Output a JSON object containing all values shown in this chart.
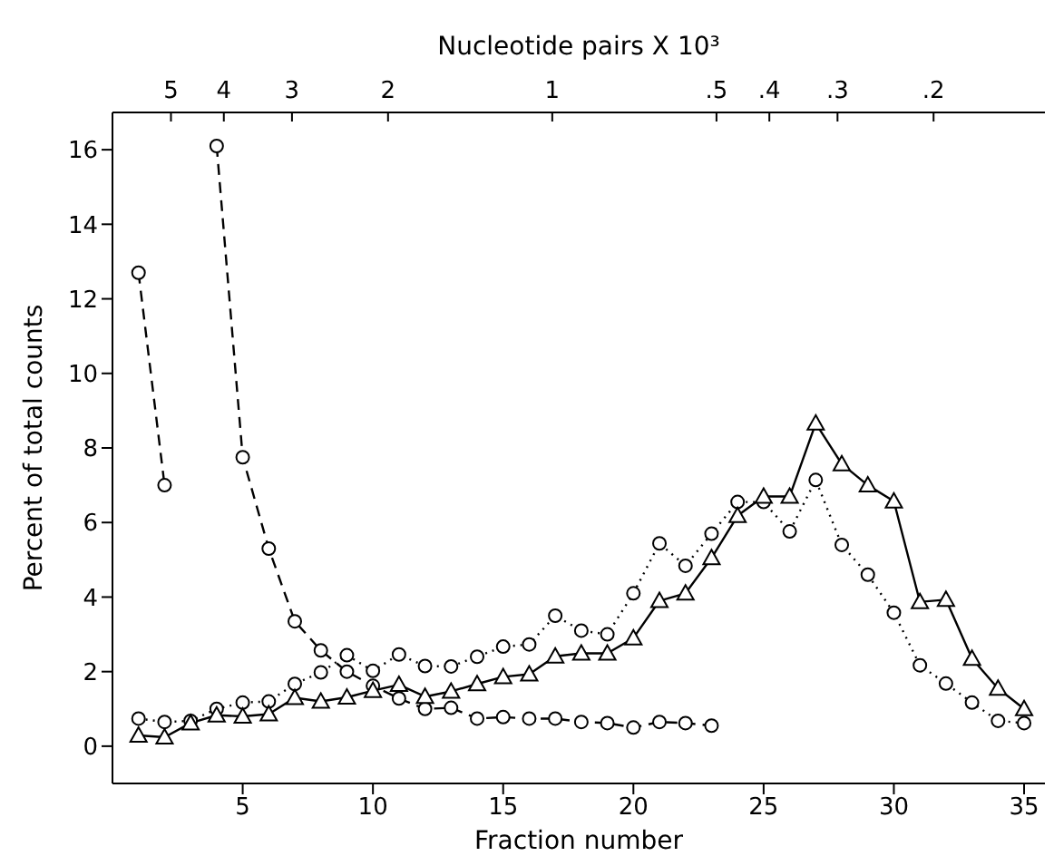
{
  "chart_data": {
    "type": "line",
    "xlabel": "Fraction number",
    "ylabel": "Percent of total counts",
    "x2label": "Nucleotide pairs X 10³",
    "x": [
      1,
      2,
      3,
      4,
      5,
      6,
      7,
      8,
      9,
      10,
      11,
      12,
      13,
      14,
      15,
      16,
      17,
      18,
      19,
      20,
      21,
      22,
      23,
      24,
      25,
      26,
      27,
      28,
      29,
      30,
      31,
      32,
      33,
      34,
      35
    ],
    "xlim": [
      0,
      35.8
    ],
    "xticks": [
      5,
      10,
      15,
      20,
      25,
      30,
      35
    ],
    "ylim": [
      -1,
      17
    ],
    "yticks": [
      0,
      2,
      4,
      6,
      8,
      10,
      12,
      14,
      16
    ],
    "log": "x2",
    "x2lim": [
      6.4,
      0.125
    ],
    "x2ticks": [
      5,
      4,
      3,
      2,
      1,
      {
        "value": 0.5,
        "label": ".5"
      },
      {
        "value": 0.4,
        "label": ".4"
      },
      {
        "value": 0.3,
        "label": ".3"
      },
      {
        "value": 0.2,
        "label": ".2"
      }
    ],
    "grid": false,
    "series": [
      {
        "color": "#000000",
        "marker": "circle",
        "line_style": "dashed",
        "x": [
          1,
          2,
          3,
          4,
          5,
          6,
          7,
          8,
          9,
          10,
          11,
          12,
          13,
          14,
          15,
          16,
          17,
          18,
          19,
          20,
          21,
          22,
          23
        ],
        "values": [
          12.7,
          7.0,
          null,
          16.1,
          7.75,
          5.3,
          3.35,
          2.57,
          2.0,
          1.62,
          1.28,
          1.0,
          1.03,
          0.74,
          0.78,
          0.74,
          0.74,
          0.65,
          0.62,
          0.5,
          0.65,
          0.62,
          0.55
        ]
      },
      {
        "color": "#000000",
        "marker": "circle",
        "line_style": "dotted",
        "values": [
          0.74,
          0.65,
          0.68,
          1.0,
          1.17,
          1.2,
          1.67,
          1.98,
          2.44,
          2.02,
          2.46,
          2.15,
          2.14,
          2.4,
          2.67,
          2.73,
          3.5,
          3.1,
          3.0,
          4.1,
          5.44,
          4.84,
          5.7,
          6.55,
          6.55,
          5.76,
          7.14,
          5.4,
          4.6,
          3.58,
          2.17,
          1.68,
          1.17,
          0.68,
          0.62
        ]
      },
      {
        "color": "#000000",
        "marker": "triangle",
        "line_style": "solid",
        "values": [
          0.29,
          0.24,
          0.62,
          0.83,
          0.8,
          0.86,
          1.3,
          1.2,
          1.31,
          1.49,
          1.65,
          1.33,
          1.47,
          1.67,
          1.86,
          1.93,
          2.41,
          2.49,
          2.49,
          2.9,
          3.9,
          4.1,
          5.05,
          6.18,
          6.7,
          6.7,
          8.66,
          7.57,
          7.0,
          6.57,
          3.87,
          3.93,
          2.35,
          1.55,
          1.0
        ]
      }
    ]
  }
}
